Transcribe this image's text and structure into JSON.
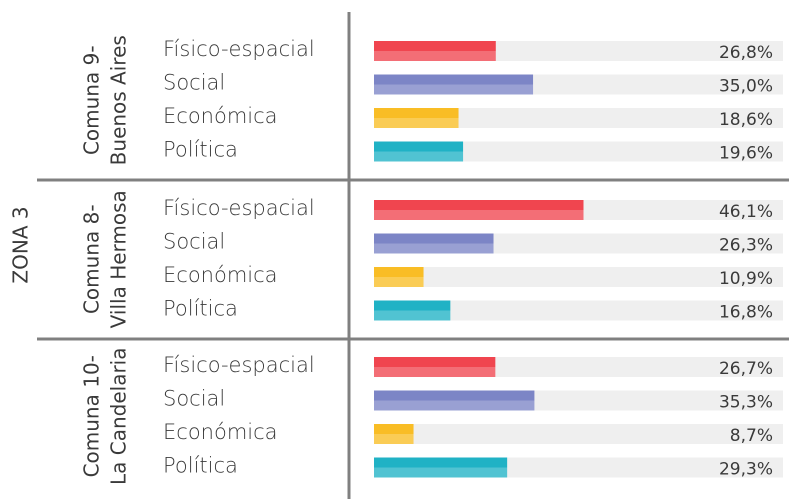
{
  "chart_data": {
    "type": "bar",
    "orientation": "horizontal",
    "label": "ZONA 3",
    "categories": [
      "Físico-espacial",
      "Social",
      "Económica",
      "Política"
    ],
    "colors": [
      "#f0454f",
      "#7c85c6",
      "#f9bd25",
      "#20b2c5"
    ],
    "xlim": [
      0,
      90
    ],
    "panels": [
      {
        "title": "Comuna 9-",
        "subtitle": "Buenos Aires",
        "values": [
          26.8,
          35.0,
          18.6,
          19.6
        ],
        "value_labels": [
          "26,8%",
          "35,0%",
          "18,6%",
          "19,6%"
        ]
      },
      {
        "title": "Comuna 8-",
        "subtitle": "Villa Hermosa",
        "values": [
          46.1,
          26.3,
          10.9,
          16.8
        ],
        "value_labels": [
          "46,1%",
          "26,3%",
          "10,9%",
          "16,8%"
        ]
      },
      {
        "title": "Comuna 10-",
        "subtitle": "La Candelaria",
        "values": [
          26.7,
          35.3,
          8.7,
          29.3
        ],
        "value_labels": [
          "26,7%",
          "35,3%",
          "8,7%",
          "29,3%"
        ]
      }
    ]
  }
}
